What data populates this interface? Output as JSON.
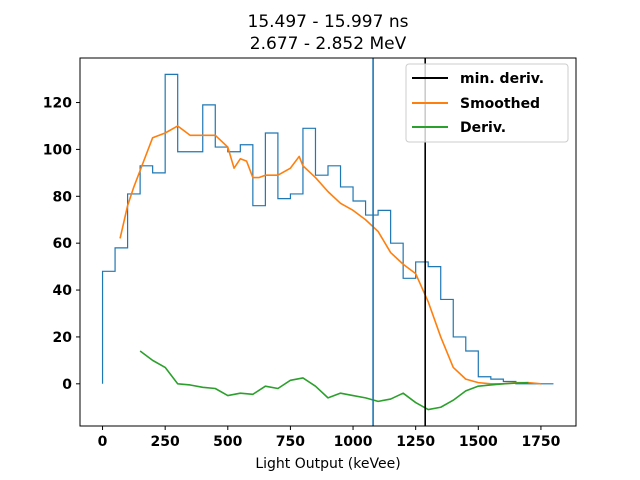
{
  "chart_data": {
    "type": "line",
    "title_line1": "15.497 - 15.997 ns",
    "title_line2": "2.677 - 2.852 MeV",
    "xlabel": "Light Output (keVee)",
    "ylabel": "",
    "xlim": [
      -90,
      1890
    ],
    "ylim": [
      -18,
      139
    ],
    "xticks": [
      0,
      250,
      500,
      750,
      1000,
      1250,
      1500,
      1750
    ],
    "yticks": [
      0,
      20,
      40,
      60,
      80,
      100,
      120
    ],
    "grid": false,
    "legend_position": "top-right",
    "colors": {
      "histogram": "#1f77b4",
      "smoothed": "#ff7f0e",
      "deriv": "#2ca02c",
      "min_deriv": "#000000",
      "vline_blue": "#1f77b4"
    },
    "histogram": {
      "bin_edges": [
        0,
        50,
        100,
        150,
        200,
        250,
        300,
        350,
        400,
        450,
        500,
        550,
        600,
        650,
        700,
        750,
        800,
        850,
        900,
        950,
        1000,
        1050,
        1100,
        1150,
        1200,
        1250,
        1300,
        1350,
        1400,
        1450,
        1500,
        1550,
        1600,
        1650,
        1700,
        1750,
        1800
      ],
      "counts": [
        48,
        58,
        81,
        93,
        90,
        132,
        99,
        99,
        119,
        101,
        99,
        102,
        76,
        107,
        79,
        81,
        109,
        89,
        93,
        84,
        78,
        72,
        74,
        60,
        45,
        52,
        50,
        36,
        20,
        14,
        3,
        2,
        1,
        0,
        0,
        0
      ]
    },
    "series": [
      {
        "name": "Smoothed",
        "x": [
          70,
          100,
          125,
          150,
          200,
          250,
          300,
          350,
          400,
          450,
          500,
          525,
          550,
          575,
          600,
          625,
          650,
          675,
          700,
          750,
          785,
          800,
          850,
          900,
          950,
          1000,
          1050,
          1100,
          1150,
          1200,
          1250,
          1300,
          1350,
          1400,
          1450,
          1500,
          1550,
          1600,
          1650,
          1700,
          1750
        ],
        "y": [
          62,
          76,
          84,
          91,
          105,
          107,
          110,
          106,
          106,
          106,
          101,
          92,
          96,
          95,
          88,
          88,
          89,
          89,
          89,
          92,
          97,
          93,
          88,
          82,
          77,
          74,
          70,
          65,
          56,
          51,
          47,
          35,
          20,
          7,
          2,
          0.5,
          0,
          0,
          0.5,
          0.5,
          0
        ]
      },
      {
        "name": "Deriv.",
        "x": [
          150,
          200,
          250,
          300,
          350,
          400,
          450,
          500,
          550,
          600,
          650,
          700,
          750,
          800,
          850,
          900,
          950,
          1000,
          1050,
          1100,
          1150,
          1200,
          1250,
          1300,
          1350,
          1400,
          1450,
          1500,
          1550,
          1600,
          1650,
          1700
        ],
        "y": [
          14,
          10,
          7,
          0,
          -0.5,
          -1.5,
          -2,
          -5,
          -4,
          -4.5,
          -1,
          -2,
          1.5,
          2.5,
          -1,
          -6,
          -4,
          -5,
          -6,
          -7.5,
          -6.5,
          -4,
          -8,
          -11,
          -10,
          -7,
          -3,
          -1,
          -0.5,
          0,
          0.3,
          0.5
        ]
      }
    ],
    "vlines": [
      {
        "name": "",
        "x": 1080,
        "color": "#1f77b4"
      },
      {
        "name": "min. deriv.",
        "x": 1288,
        "color": "#000000"
      }
    ],
    "legend": [
      "min. deriv.",
      "Smoothed",
      "Deriv."
    ]
  }
}
